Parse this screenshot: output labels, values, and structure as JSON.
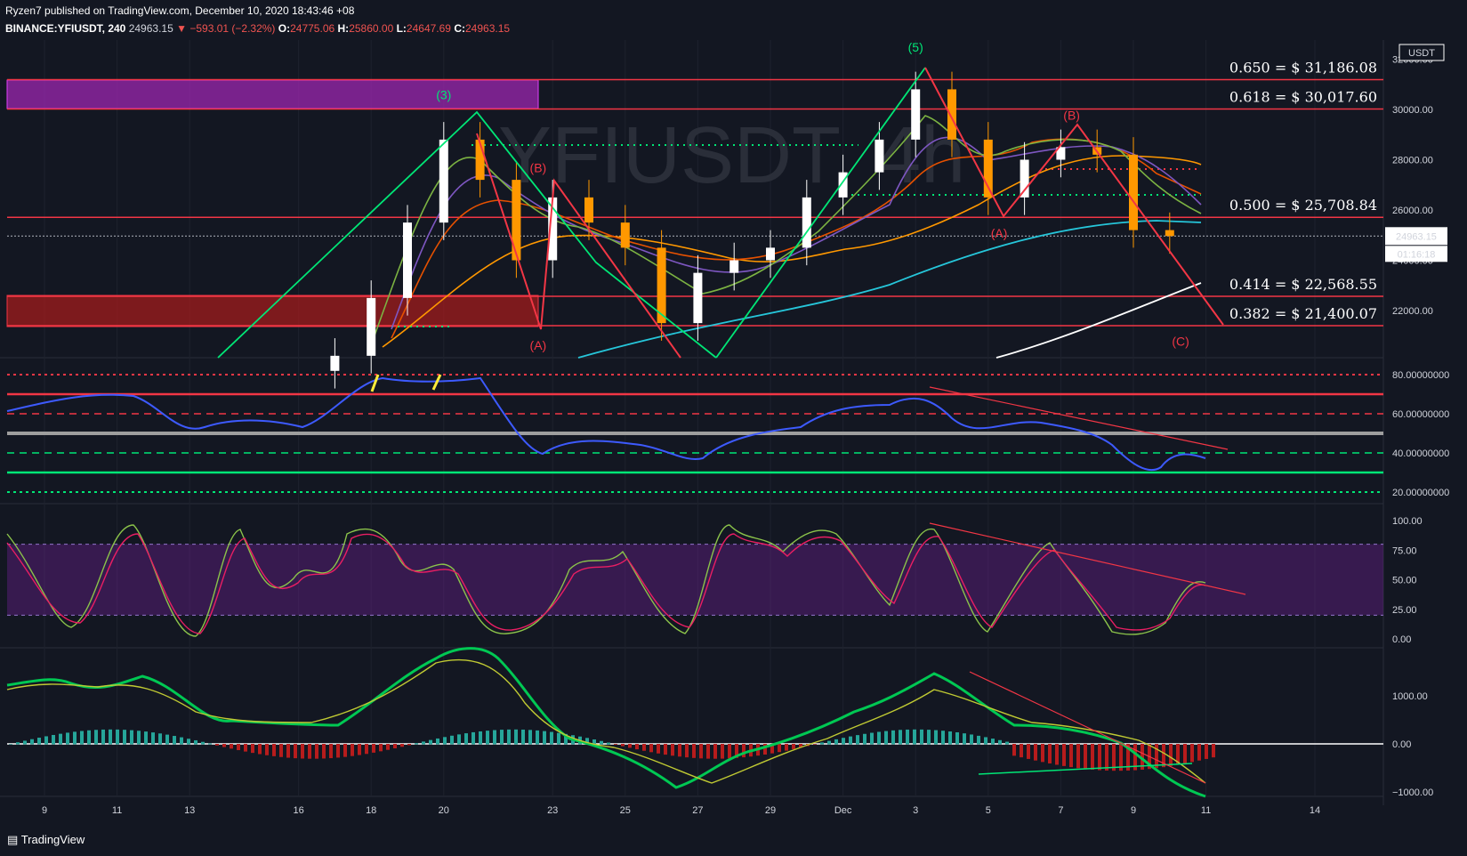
{
  "header": {
    "line1": "Ryzen7 published on TradingView.com, December 10, 2020 18:43:46 +08",
    "symbol": "BINANCE:YFIUSDT, 240",
    "last": "24963.15",
    "change": "−593.01 (−2.32%)",
    "o_label": "O:",
    "o_val": "24775.06",
    "h_label": "H:",
    "h_val": "25860.00",
    "l_label": "L:",
    "l_val": "24647.69",
    "c_label": "C:",
    "c_val": "24963.15"
  },
  "watermark": "YFIUSDT, 4h",
  "footer": {
    "brand": "TradingView"
  },
  "price_axis": {
    "currency": "USDT",
    "ticks": [
      "32000.00",
      "30000.00",
      "28000.00",
      "26000.00",
      "24000.00",
      "22000.00"
    ],
    "last_price": "24963.15",
    "countdown": "01:16:18"
  },
  "fib_levels": [
    {
      "label": "0.650 = $ 31,186.08",
      "value": 31186.08
    },
    {
      "label": "0.618 = $ 30,017.60",
      "value": 30017.6
    },
    {
      "label": "0.500 = $ 25,708.84",
      "value": 25708.84
    },
    {
      "label": "0.414 = $ 22,568.55",
      "value": 22568.55
    },
    {
      "label": "0.382 = $ 21,400.07",
      "value": 21400.07
    }
  ],
  "wave_labels": [
    {
      "text": "(3)",
      "date": "Nov 20",
      "price": 30400,
      "color": "#00e676"
    },
    {
      "text": "(5)",
      "date": "Dec 3",
      "price": 32300,
      "color": "#00e676"
    },
    {
      "text": "(B)",
      "date": "Nov 22.6",
      "price": 27500,
      "color": "#f23645"
    },
    {
      "text": "(A)",
      "date": "Nov 22.6",
      "price": 20450,
      "color": "#f23645"
    },
    {
      "text": "(B)",
      "date": "Dec 7.3",
      "price": 29600,
      "color": "#f23645"
    },
    {
      "text": "(A)",
      "date": "Dec 5.3",
      "price": 24900,
      "color": "#f23645"
    },
    {
      "text": "(C)",
      "date": "Dec 10.3",
      "price": 20600,
      "color": "#f23645"
    }
  ],
  "rsi_axis": {
    "ticks": [
      "80.00000000",
      "60.00000000",
      "40.00000000",
      "20.00000000"
    ]
  },
  "stoch_axis": {
    "ticks": [
      "100.00",
      "75.00",
      "50.00",
      "25.00",
      "0.00"
    ]
  },
  "macd_axis": {
    "ticks": [
      "1000.00",
      "0.00",
      "−1000.00"
    ]
  },
  "time_axis": {
    "ticks": [
      "9",
      "11",
      "13",
      "16",
      "18",
      "20",
      "23",
      "25",
      "27",
      "29",
      "Dec",
      "3",
      "5",
      "7",
      "9",
      "11",
      "14"
    ]
  },
  "chart_data": {
    "type": "candlestick",
    "symbol": "BINANCE:YFIUSDT",
    "interval": "240",
    "ylim": [
      20000,
      32500
    ],
    "x": [
      "Nov 17",
      "Nov 18",
      "Nov 19",
      "Nov 20",
      "Nov 21",
      "Nov 22",
      "Nov 23",
      "Nov 24",
      "Nov 25",
      "Nov 26",
      "Nov 27",
      "Nov 28",
      "Nov 29",
      "Nov 30",
      "Dec 1",
      "Dec 2",
      "Dec 3",
      "Dec 4",
      "Dec 5",
      "Dec 6",
      "Dec 7",
      "Dec 8",
      "Dec 9",
      "Dec 10"
    ],
    "close": [
      20200,
      22500,
      25500,
      28800,
      27200,
      24000,
      26500,
      25500,
      24500,
      21500,
      23500,
      24000,
      24500,
      26500,
      27500,
      28800,
      30800,
      28800,
      26500,
      28000,
      28500,
      28200,
      25200,
      24963.15
    ],
    "rsi": {
      "ylim": [
        20,
        85
      ],
      "levels": [
        80,
        70,
        60,
        50,
        40,
        30,
        20
      ]
    },
    "stoch": {
      "ylim": [
        0,
        100
      ],
      "band": [
        20,
        80
      ]
    },
    "macd": {
      "ylim": [
        -1000,
        1500
      ]
    }
  }
}
